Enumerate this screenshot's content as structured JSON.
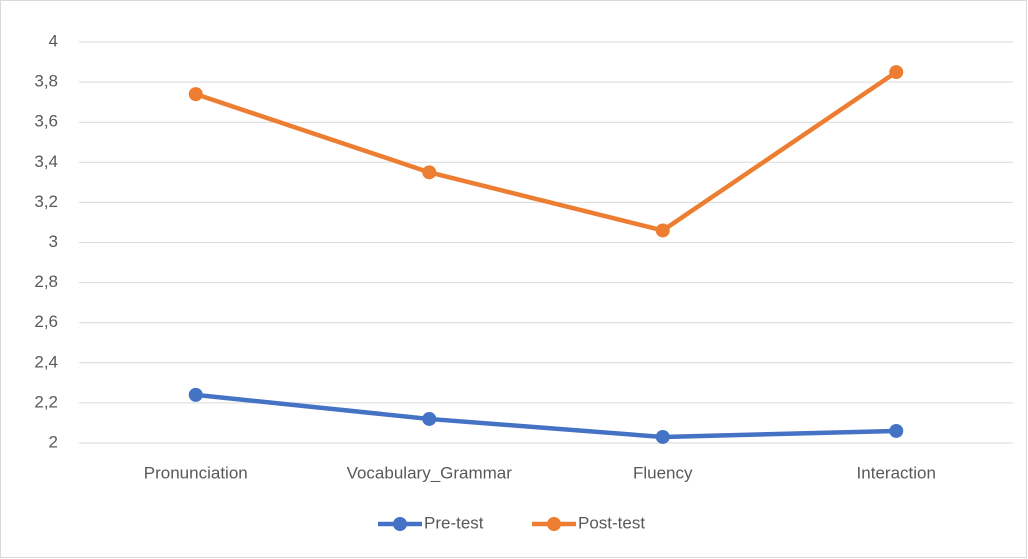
{
  "chart_data": {
    "type": "line",
    "categories": [
      "Pronunciation",
      "Vocabulary_Grammar",
      "Fluency",
      "Interaction"
    ],
    "series": [
      {
        "name": "Pre-test",
        "color": "#4472c4",
        "values": [
          2.24,
          2.12,
          2.03,
          2.06
        ]
      },
      {
        "name": "Post-test",
        "color": "#ed7d31",
        "values": [
          3.74,
          3.35,
          3.06,
          3.85
        ]
      }
    ],
    "ylim": [
      2,
      4
    ],
    "yticks": [
      2,
      {
        "value": 2.2,
        "label": "2,2"
      },
      {
        "value": 2.4,
        "label": "2,4"
      },
      {
        "value": 2.6,
        "label": "2,6"
      },
      {
        "value": 2.8,
        "label": "2,8"
      },
      3,
      {
        "value": 3.2,
        "label": "3,2"
      },
      {
        "value": 3.4,
        "label": "3,4"
      },
      {
        "value": 3.6,
        "label": "3,6"
      },
      {
        "value": 3.8,
        "label": "3,8"
      },
      4
    ],
    "grid": true,
    "legend": "bottom"
  }
}
